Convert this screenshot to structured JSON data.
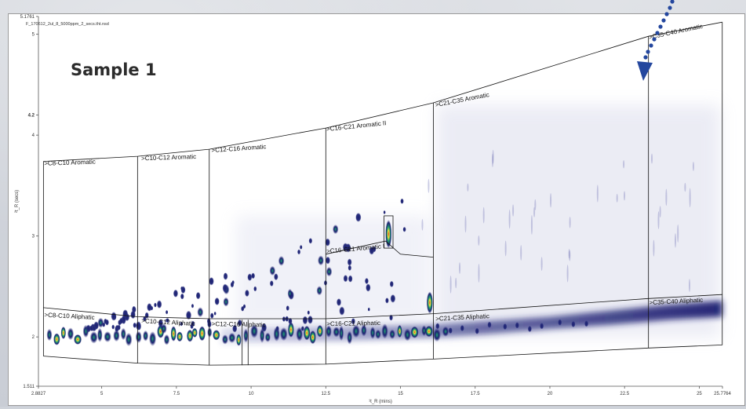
{
  "chart_data": {
    "type": "heatmap",
    "filename": "F_170612_2ul_8_5000ppm_2_secs.tht.nsd",
    "sample_label": "Sample 1",
    "xlabel": "¹t_R (mins)",
    "ylabel": "²t_R (secs)",
    "x_range": [
      2.8827,
      25.7764
    ],
    "y_range": [
      1.511,
      5.1761
    ],
    "x_ticks": [
      {
        "value": 2.8827,
        "label": "2.8827"
      },
      {
        "value": 5,
        "label": "5"
      },
      {
        "value": 7.5,
        "label": "7.5"
      },
      {
        "value": 10,
        "label": "10"
      },
      {
        "value": 12.5,
        "label": "12.5"
      },
      {
        "value": 15,
        "label": "15"
      },
      {
        "value": 17.5,
        "label": "17.5"
      },
      {
        "value": 20,
        "label": "20"
      },
      {
        "value": 22.5,
        "label": "22.5"
      },
      {
        "value": 25,
        "label": "25"
      },
      {
        "value": 25.7764,
        "label": "25.7764"
      }
    ],
    "y_ticks": [
      {
        "value": 1.511,
        "label": "1.511"
      },
      {
        "value": 2,
        "label": "2"
      },
      {
        "value": 3,
        "label": "3"
      },
      {
        "value": 4,
        "label": "4"
      },
      {
        "value": 4.2,
        "label": "4.2"
      },
      {
        "value": 5,
        "label": "5"
      },
      {
        "value": 5.1761,
        "label": "5.1761"
      }
    ],
    "region_labels": [
      {
        "text": ">C8-C10 Aromatic",
        "x": 3.05,
        "y": 3.73,
        "rot": -2
      },
      {
        "text": ">C10-C12 Aromatic",
        "x": 6.3,
        "y": 3.78,
        "rot": -2
      },
      {
        "text": ">C12-C16 Aromatic",
        "x": 8.65,
        "y": 3.86,
        "rot": -4
      },
      {
        "text": ">C16-C21 Aromatic II",
        "x": 12.5,
        "y": 4.07,
        "rot": -6
      },
      {
        "text": ">C16-C21 Aromatic I",
        "x": 12.5,
        "y": 2.86,
        "rot": -5
      },
      {
        "text": ">C21-C35 Aromatic",
        "x": 16.15,
        "y": 4.31,
        "rot": -11
      },
      {
        "text": ">C35-C40 Aromatic",
        "x": 23.3,
        "y": 4.98,
        "rot": -12
      },
      {
        "text": ">C8-C10 Aliphatic",
        "x": 3.05,
        "y": 2.23,
        "rot": 3
      },
      {
        "text": ">C10-C12 Aliphatic",
        "x": 6.3,
        "y": 2.17,
        "rot": 3
      },
      {
        "text": ">C12-C16 Aliphatic",
        "x": 8.65,
        "y": 2.14,
        "rot": 1
      },
      {
        "text": ">C16-C21 Aliphatic",
        "x": 12.5,
        "y": 2.14,
        "rot": -1
      },
      {
        "text": ">C21-C35 Aliphatic",
        "x": 16.15,
        "y": 2.19,
        "rot": -3
      },
      {
        "text": ">C35-C40 Aliphatic",
        "x": 23.3,
        "y": 2.35,
        "rot": -3
      }
    ],
    "grid": false,
    "colormap": [
      "#ffffff",
      "#d8daf0",
      "#1a1f70",
      "#1f9e72",
      "#f2e43a",
      "#e3282a"
    ]
  },
  "colors": {
    "arrow": "#24479e",
    "frame": "#9a9a9a",
    "text": "#222222"
  }
}
